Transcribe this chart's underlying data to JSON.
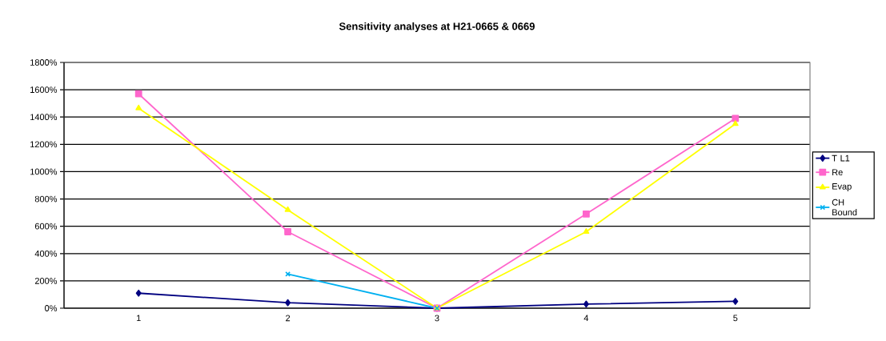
{
  "chart_data": {
    "type": "line",
    "title": "Sensitivity analyses at H21-0665 & 0669",
    "categories": [
      "1",
      "2",
      "3",
      "4",
      "5"
    ],
    "series": [
      {
        "name": "T L1",
        "color": "#000080",
        "marker": "diamond",
        "values": [
          110,
          40,
          0,
          30,
          50
        ]
      },
      {
        "name": "Re",
        "color": "#ff66cc",
        "marker": "square",
        "values": [
          1570,
          560,
          0,
          690,
          1390
        ]
      },
      {
        "name": "Evap",
        "color": "#ffff00",
        "marker": "triangle",
        "values": [
          1465,
          720,
          0,
          560,
          1350
        ]
      },
      {
        "name": "CH Bound",
        "color": "#00b0f0",
        "marker": "cross",
        "values": [
          null,
          250,
          0,
          null,
          null
        ]
      }
    ],
    "ylim": [
      0,
      1800
    ],
    "yticks": [
      {
        "value": 0,
        "label": "0%"
      },
      {
        "value": 200,
        "label": "200%"
      },
      {
        "value": 400,
        "label": "400%"
      },
      {
        "value": 600,
        "label": "600%"
      },
      {
        "value": 800,
        "label": "800%"
      },
      {
        "value": 1000,
        "label": "1000%"
      },
      {
        "value": 1200,
        "label": "1200%"
      },
      {
        "value": 1400,
        "label": "1400%"
      },
      {
        "value": 1600,
        "label": "1600%"
      },
      {
        "value": 1800,
        "label": "1800%"
      }
    ],
    "grid": "y",
    "legend": "right",
    "line_style": "solid"
  }
}
